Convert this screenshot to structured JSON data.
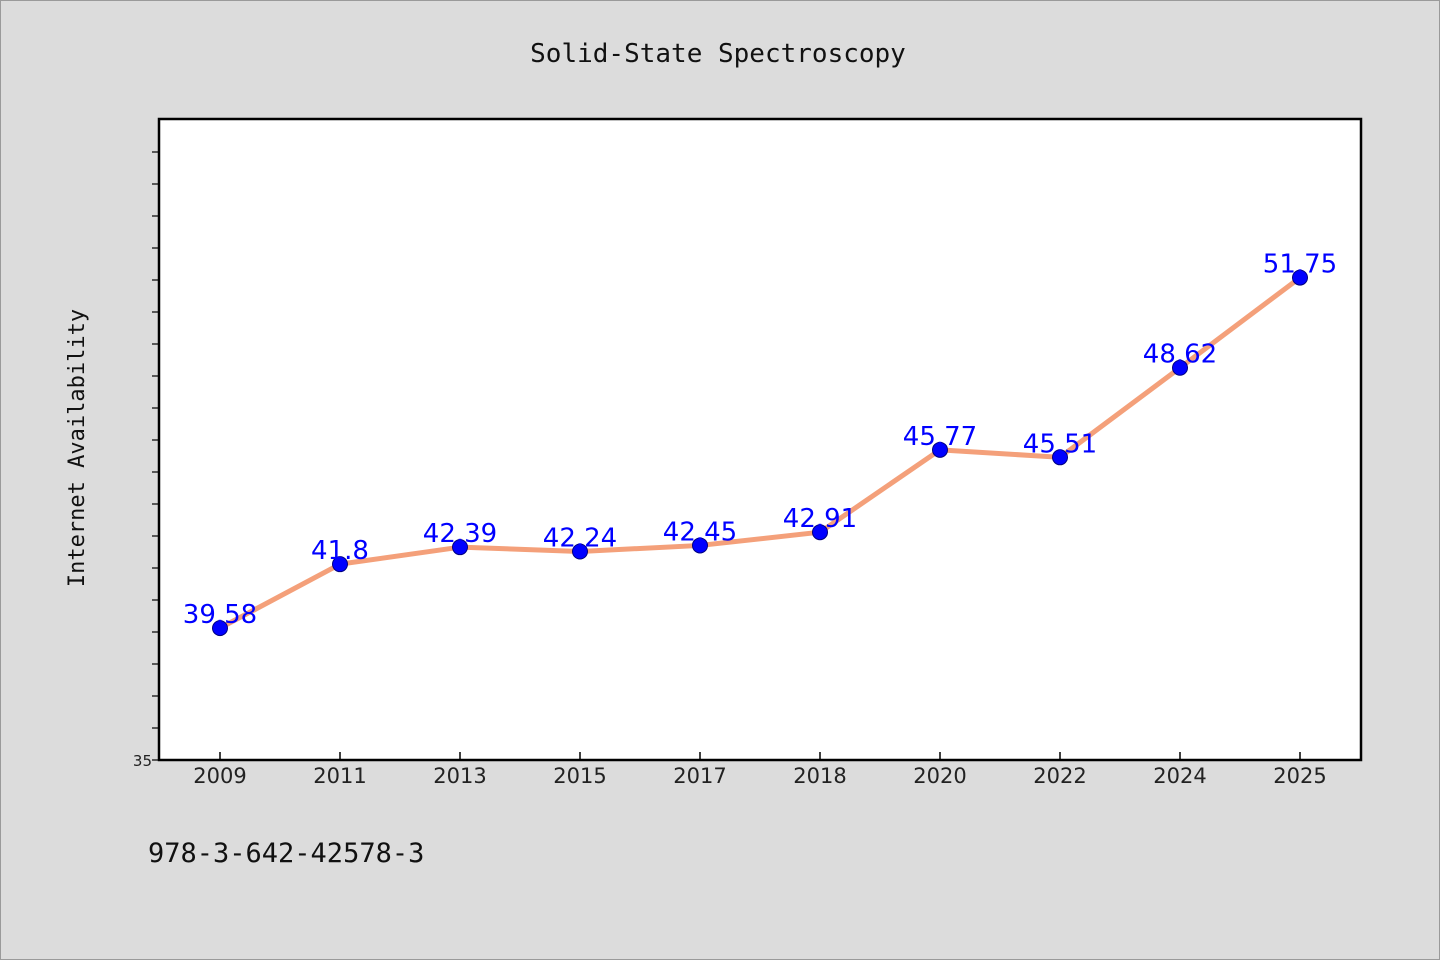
{
  "chart_data": {
    "type": "line",
    "title": "Solid-State Spectroscopy",
    "xlabel": "",
    "ylabel": "Internet Availability",
    "categories": [
      "2009",
      "2011",
      "2013",
      "2015",
      "2017",
      "2018",
      "2020",
      "2022",
      "2024",
      "2025"
    ],
    "values": [
      39.58,
      41.8,
      42.39,
      42.24,
      42.45,
      42.91,
      45.77,
      45.51,
      48.62,
      51.75
    ],
    "data_labels": [
      "39.58",
      "41.8",
      "42.39",
      "42.24",
      "42.45",
      "42.91",
      "45.77",
      "45.51",
      "48.62",
      "51.75"
    ],
    "ylim": [
      35,
      55
    ],
    "y_tick_labels": [
      "35"
    ],
    "grid": false,
    "colors": {
      "line": "#f4a07a",
      "marker": "#0000ff",
      "data_label": "#0000ff",
      "background": "#dcdcdc",
      "plot_background": "#ffffff"
    }
  },
  "footer": {
    "text": "978-3-642-42578-3"
  }
}
